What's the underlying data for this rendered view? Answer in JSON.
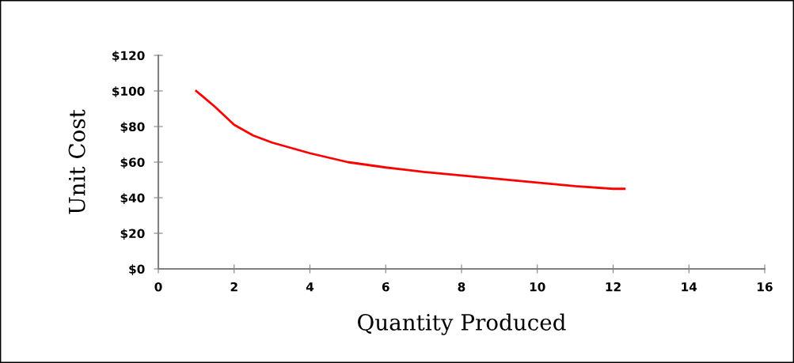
{
  "chart_data": {
    "type": "line",
    "xlabel": "Quantity Produced",
    "ylabel": "Unit Cost",
    "x": [
      1,
      1.5,
      2,
      2.5,
      3,
      4,
      5,
      6,
      7,
      8,
      9,
      10,
      11,
      12,
      12.3
    ],
    "series": [
      {
        "color": "#ff0000",
        "values": [
          100,
          91,
          81,
          75,
          71,
          65,
          60,
          57,
          54.5,
          52.5,
          50.5,
          48.5,
          46.5,
          45,
          45
        ]
      }
    ],
    "xlim": [
      0,
      16
    ],
    "xticks": [
      0,
      2,
      4,
      6,
      8,
      10,
      12,
      14,
      16
    ],
    "ylim": [
      0,
      120
    ],
    "yticks": [
      {
        "value": 0,
        "label": "$0"
      },
      {
        "value": 20,
        "label": "$20"
      },
      {
        "value": 40,
        "label": "$40"
      },
      {
        "value": 60,
        "label": "$60"
      },
      {
        "value": 80,
        "label": "$80"
      },
      {
        "value": 100,
        "label": "$100"
      },
      {
        "value": 120,
        "label": "$120"
      }
    ],
    "grid": false,
    "legend": false,
    "marker": "none",
    "line_style": "solid"
  }
}
